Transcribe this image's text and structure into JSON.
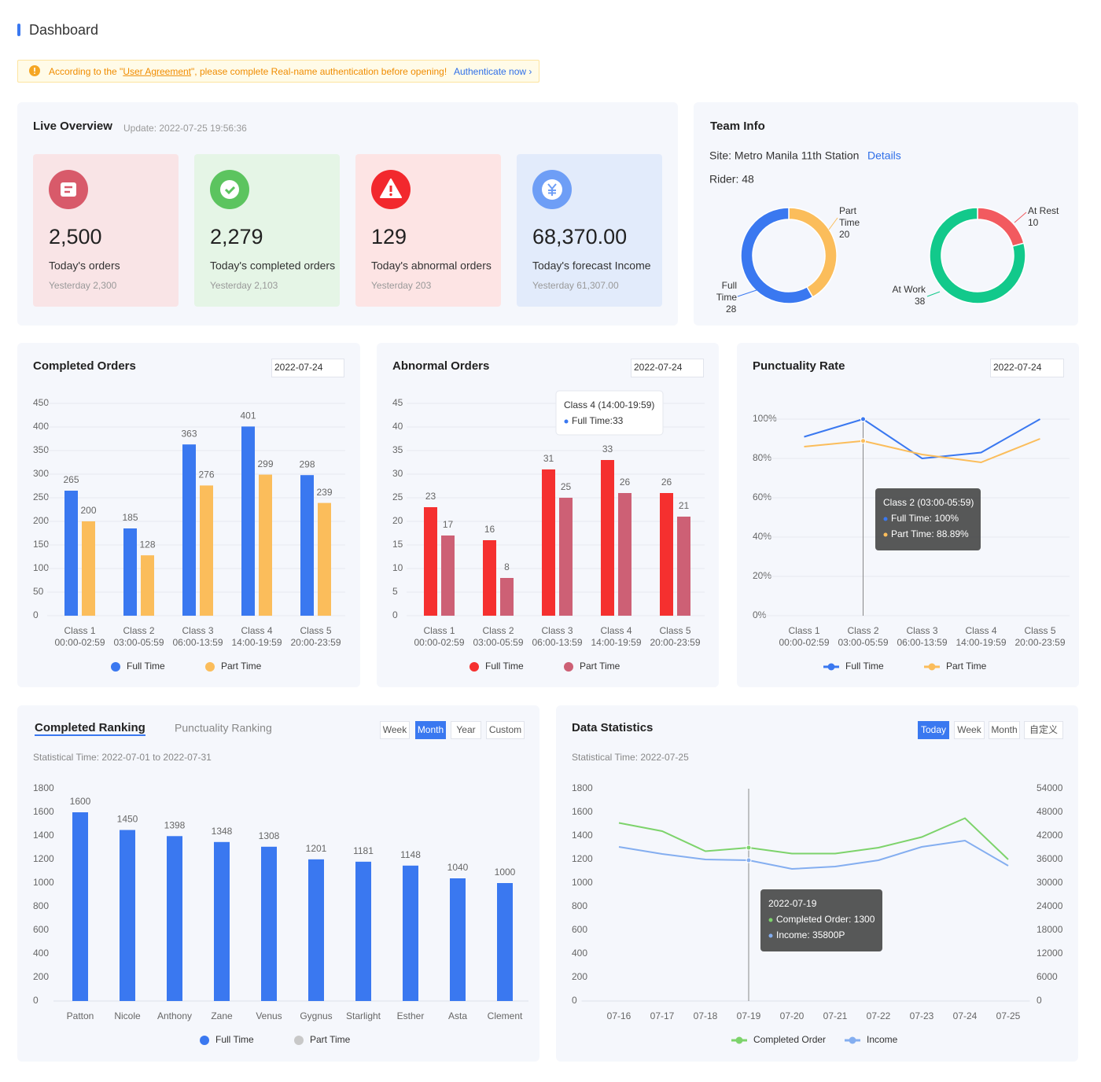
{
  "header": {
    "title": "Dashboard"
  },
  "notice": {
    "prefix": "According to the \"",
    "link": "User Agreement",
    "suffix": "\", please complete Real-name authentication before opening!",
    "action": "Authenticate now ›"
  },
  "live_overview": {
    "title": "Live Overview",
    "update": "Update: 2022-07-25 19:56:36",
    "cards": [
      {
        "value": "2,500",
        "label": "Today's orders",
        "yesterday": "Yesterday 2,300"
      },
      {
        "value": "2,279",
        "label": "Today's completed orders",
        "yesterday": "Yesterday 2,103"
      },
      {
        "value": "129",
        "label": "Today's abnormal orders",
        "yesterday": "Yesterday 203"
      },
      {
        "value": "68,370.00",
        "label": "Today's forecast Income",
        "yesterday": "Yesterday 61,307.00"
      }
    ]
  },
  "team_info": {
    "title": "Team Info",
    "site": "Site: Metro Manila 11th Station",
    "details": "Details",
    "rider": "Rider: 48"
  },
  "ranking_panel": {
    "tabs": [
      "Completed Ranking",
      "Punctuality Ranking"
    ],
    "periods": [
      "Week",
      "Month",
      "Year",
      "Custom"
    ],
    "active_period": 1,
    "time": "Statistical Time: 2022-07-01 to 2022-07-31"
  },
  "statistics_panel": {
    "title": "Data Statistics",
    "periods": [
      "Today",
      "Week",
      "Month",
      "自定义"
    ],
    "active_period": 0,
    "time": "Statistical Time: 2022-07-25"
  },
  "chart_data": [
    {
      "type": "donut",
      "categories": [
        "Part Time",
        "Full Time"
      ],
      "values": [
        20,
        28
      ],
      "colors": [
        "#fbbd5b",
        "#3a78f0"
      ]
    },
    {
      "type": "donut",
      "categories": [
        "At Rest",
        "At Work"
      ],
      "values": [
        10,
        38
      ],
      "colors": [
        "#f25a5f",
        "#12c98b"
      ]
    },
    {
      "type": "bar",
      "title": "Completed Orders",
      "date": "2022-07-24",
      "categories": [
        "Class 1",
        "Class 2",
        "Class 3",
        "Class 4",
        "Class 5"
      ],
      "sublabels": [
        "00:00-02:59",
        "03:00-05:59",
        "06:00-13:59",
        "14:00-19:59",
        "20:00-23:59"
      ],
      "series": [
        {
          "name": "Full Time",
          "color": "#3a78f0",
          "values": [
            265,
            185,
            363,
            401,
            298
          ]
        },
        {
          "name": "Part Time",
          "color": "#fbbd5b",
          "values": [
            200,
            128,
            276,
            299,
            239
          ]
        }
      ],
      "ylim": [
        0,
        450
      ],
      "yticks": [
        0,
        50,
        100,
        150,
        200,
        250,
        300,
        350,
        400,
        450
      ],
      "grid": true
    },
    {
      "type": "bar",
      "title": "Abnormal Orders",
      "date": "2022-07-24",
      "categories": [
        "Class 1",
        "Class 2",
        "Class 3",
        "Class 4",
        "Class 5"
      ],
      "sublabels": [
        "00:00-02:59",
        "03:00-05:59",
        "06:00-13:59",
        "14:00-19:59",
        "20:00-23:59"
      ],
      "series": [
        {
          "name": "Full Time",
          "color": "#f5302f",
          "values": [
            23,
            16,
            31,
            33,
            26
          ]
        },
        {
          "name": "Part Time",
          "color": "#cd6075",
          "values": [
            17,
            8,
            25,
            26,
            21
          ]
        }
      ],
      "ylim": [
        0,
        45
      ],
      "yticks": [
        0,
        5,
        10,
        15,
        20,
        25,
        30,
        35,
        40,
        45
      ],
      "grid": true,
      "tooltip": {
        "index": 3,
        "title": "Class 4 (14:00-19:59)",
        "lines": [
          "Full Time:33"
        ]
      }
    },
    {
      "type": "line",
      "title": "Punctuality Rate",
      "date": "2022-07-24",
      "categories": [
        "Class 1",
        "Class 2",
        "Class 3",
        "Class 4",
        "Class 5"
      ],
      "sublabels": [
        "00:00-02:59",
        "03:00-05:59",
        "06:00-13:59",
        "14:00-19:59",
        "20:00-23:59"
      ],
      "series": [
        {
          "name": "Full Time",
          "color": "#3a78f0",
          "values": [
            91,
            100,
            80,
            83,
            100
          ]
        },
        {
          "name": "Part Time",
          "color": "#fbbd5b",
          "values": [
            86,
            88.89,
            82,
            78,
            90
          ]
        }
      ],
      "ylim": [
        0,
        100
      ],
      "yticks": [
        {
          "value": 0,
          "label": "0%"
        },
        {
          "value": 20,
          "label": "20%"
        },
        {
          "value": 40,
          "label": "40%"
        },
        {
          "value": 60,
          "label": "60%"
        },
        {
          "value": 80,
          "label": "80%"
        },
        {
          "value": 100,
          "label": "100%"
        }
      ],
      "grid": true,
      "tooltip": {
        "index": 1,
        "title": "Class 2 (03:00-05:59)",
        "lines": [
          "Full Time: 100%",
          "Part Time: 88.89%"
        ]
      }
    },
    {
      "type": "bar",
      "categories": [
        "Patton",
        "Nicole",
        "Anthony",
        "Zane",
        "Venus",
        "Gygnus",
        "Starlight",
        "Esther",
        "Asta",
        "Clement"
      ],
      "series": [
        {
          "name": "Full Time",
          "color": "#3a78f0",
          "values": [
            1600,
            1450,
            1398,
            1348,
            1308,
            1201,
            1181,
            1148,
            1040,
            1000
          ]
        },
        {
          "name": "Part Time",
          "color": "#c8c8c8",
          "values": [
            null,
            null,
            null,
            null,
            null,
            null,
            null,
            null,
            null,
            null
          ]
        }
      ],
      "ylim": [
        0,
        1800
      ],
      "yticks": [
        0,
        200,
        400,
        600,
        800,
        1000,
        1200,
        1400,
        1600,
        1800
      ],
      "grid": false
    },
    {
      "type": "line",
      "categories": [
        "07-16",
        "07-17",
        "07-18",
        "07-19",
        "07-20",
        "07-21",
        "07-22",
        "07-23",
        "07-24",
        "07-25"
      ],
      "series": [
        {
          "name": "Completed Order",
          "color": "#7dd36b",
          "values": [
            1510,
            1440,
            1270,
            1300,
            1250,
            1250,
            1300,
            1390,
            1550,
            1200
          ]
        },
        {
          "name": "Income",
          "color": "#84aef0",
          "axis": "y2",
          "values": [
            39200,
            37400,
            36000,
            35800,
            33600,
            34200,
            35800,
            39200,
            40800,
            34400
          ]
        }
      ],
      "ylim": [
        0,
        1800
      ],
      "yticks": [
        0,
        200,
        400,
        600,
        800,
        1000,
        1200,
        1400,
        1600,
        1800
      ],
      "y2lim": [
        0,
        54000
      ],
      "y2ticks": [
        0,
        6000,
        12000,
        18000,
        24000,
        30000,
        36000,
        42000,
        48000,
        54000
      ],
      "grid": false,
      "tooltip": {
        "index": 3,
        "title": "2022-07-19",
        "lines": [
          "Completed Order: 1300",
          "Income: 35800P"
        ]
      }
    }
  ]
}
